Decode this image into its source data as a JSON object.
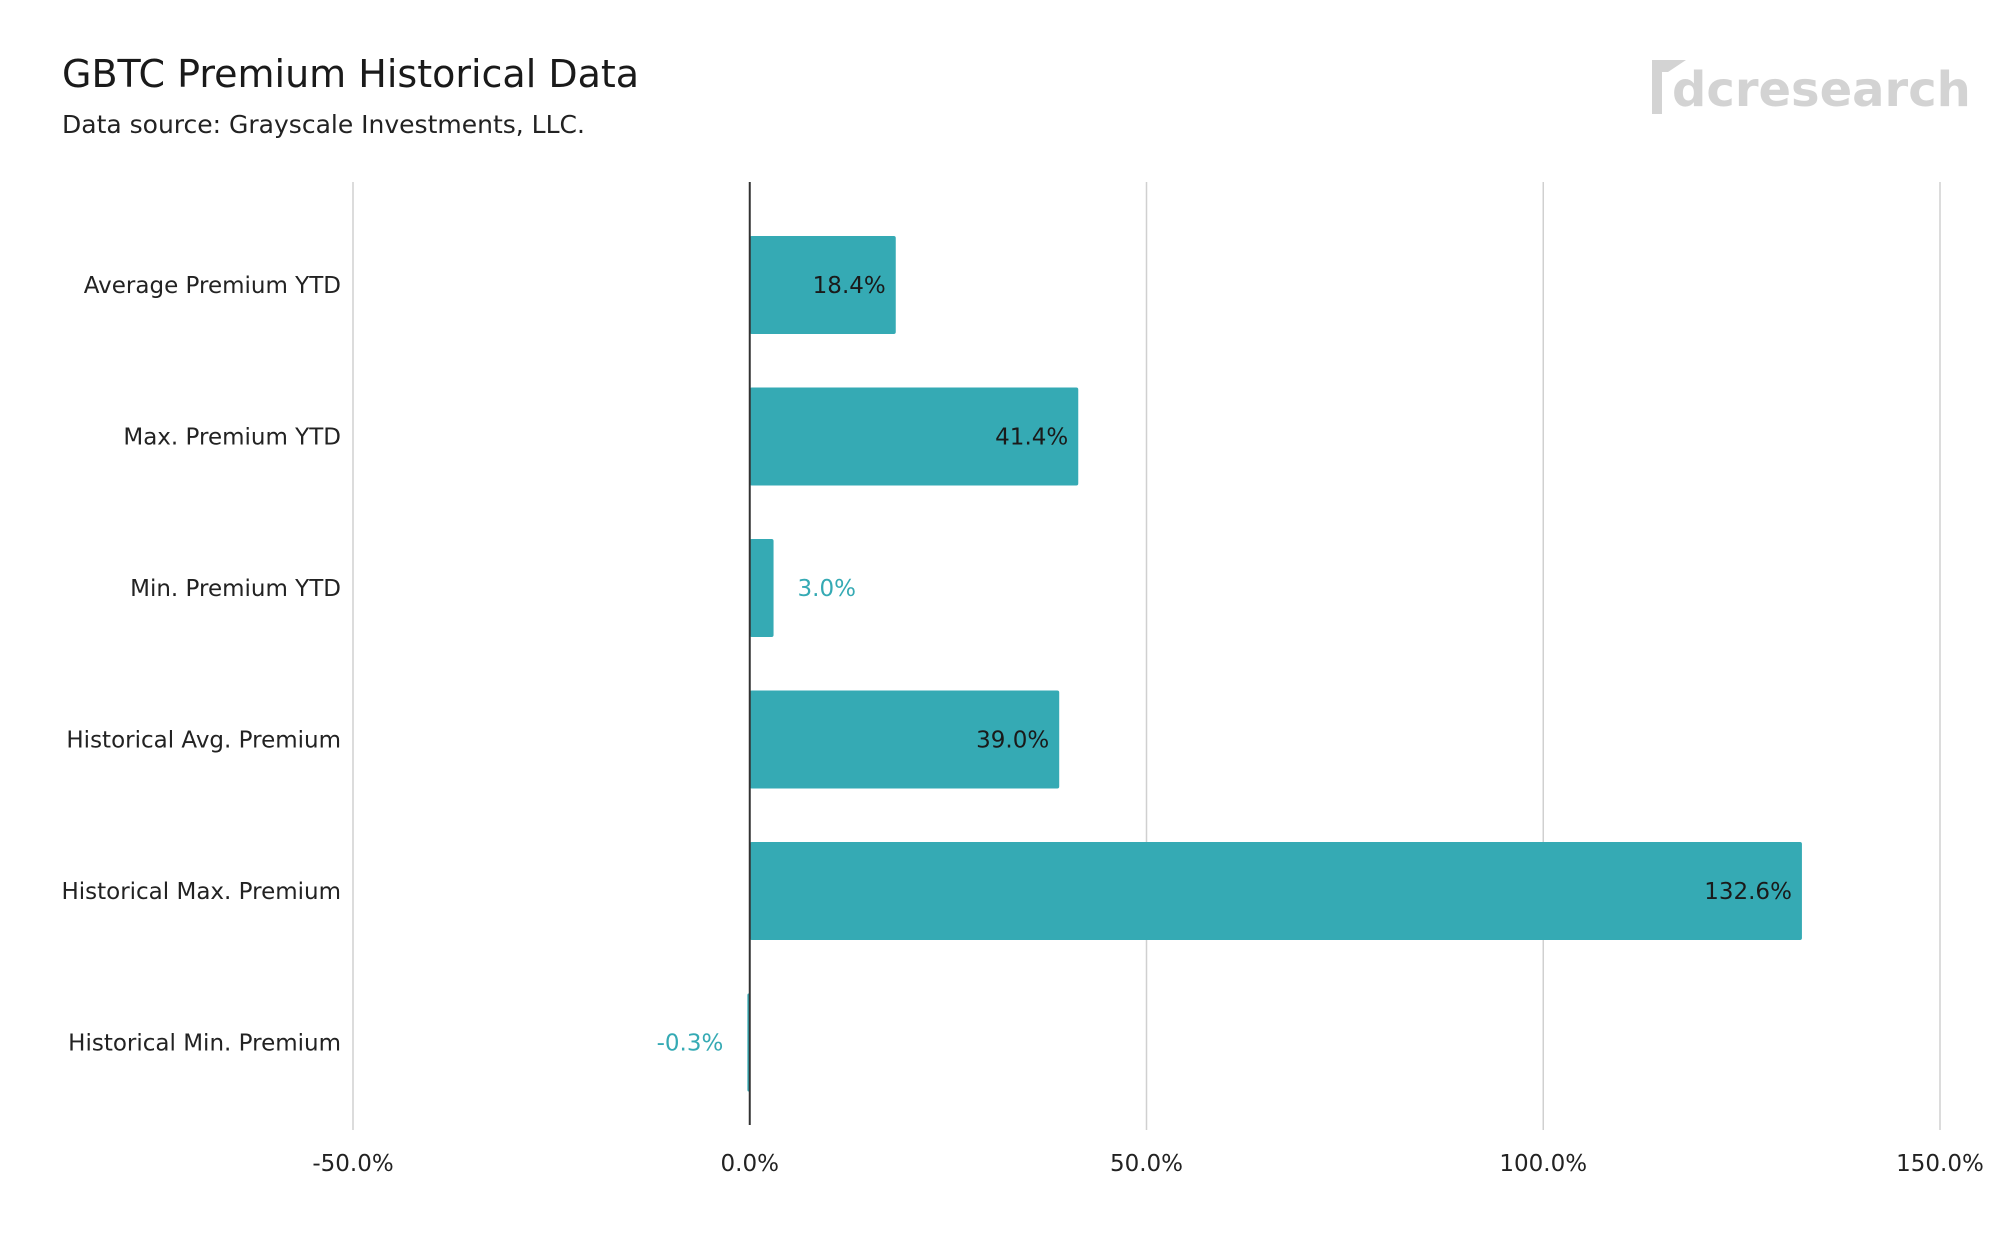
{
  "title": "GBTC Premium Historical Data",
  "subtitle": "Data source: Grayscale Investments, LLC.",
  "logo_text": "dcresearch",
  "chart_data": {
    "type": "bar",
    "orientation": "horizontal",
    "title": "GBTC Premium Historical Data",
    "subtitle": "Data source: Grayscale Investments, LLC.",
    "categories": [
      "Average Premium YTD",
      "Max. Premium YTD",
      "Min. Premium YTD",
      "Historical Avg. Premium",
      "Historical Max. Premium",
      "Historical Min. Premium"
    ],
    "values": [
      18.4,
      41.4,
      3.0,
      39.0,
      132.6,
      -0.3
    ],
    "value_labels": [
      "18.4%",
      "41.4%",
      "3.0%",
      "39.0%",
      "132.6%",
      "-0.3%"
    ],
    "xlim": [
      -50,
      150
    ],
    "xticks": [
      -50,
      0,
      50,
      100,
      150
    ],
    "xtick_labels": [
      "-50.0%",
      "0.0%",
      "50.0%",
      "100.0%",
      "150.0%"
    ],
    "xlabel": "",
    "ylabel": "",
    "grid": true,
    "legend": "none",
    "colors": {
      "bar": "#35aab4",
      "outside_label": "#35aab4",
      "inside_label": "#1a1a1a",
      "gridline": "#d0d0d0",
      "zero_line": "#333333"
    }
  }
}
